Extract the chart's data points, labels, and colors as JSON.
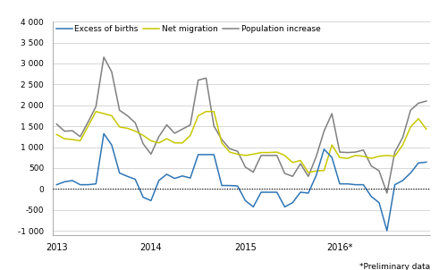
{
  "footnote": "*Preliminary data",
  "legend": [
    "Excess of births",
    "Net migration",
    "Population increase"
  ],
  "colors": {
    "excess_births": "#2e75b6",
    "net_migration": "#c8c800",
    "population_increase": "#808080"
  },
  "ylim": [
    -1100,
    4000
  ],
  "yticks": [
    -1000,
    -500,
    0,
    500,
    1000,
    1500,
    2000,
    2500,
    3000,
    3500,
    4000
  ],
  "ytick_labels": [
    "-1 000",
    "-500",
    "0",
    "500",
    "1 000",
    "1 500",
    "2 000",
    "2 500",
    "3 000",
    "3 500",
    "4 000"
  ],
  "xtick_positions": [
    0,
    12,
    24,
    36
  ],
  "xtick_labels": [
    "2013",
    "2014",
    "2015",
    "2016*"
  ],
  "excess_births": [
    100,
    170,
    200,
    100,
    100,
    120,
    1320,
    1050,
    380,
    300,
    230,
    -200,
    -280,
    200,
    350,
    250,
    310,
    260,
    820,
    820,
    820,
    80,
    80,
    70,
    -280,
    -430,
    -80,
    -80,
    -80,
    -430,
    -330,
    -80,
    -100,
    320,
    950,
    750,
    120,
    120,
    100,
    100,
    -180,
    -330,
    -1000,
    100,
    200,
    380,
    620,
    640
  ],
  "net_migration": [
    1300,
    1200,
    1180,
    1150,
    1500,
    1850,
    1800,
    1750,
    1480,
    1450,
    1380,
    1280,
    1150,
    1100,
    1200,
    1100,
    1100,
    1280,
    1750,
    1850,
    1850,
    1100,
    880,
    830,
    800,
    830,
    870,
    870,
    880,
    800,
    630,
    680,
    390,
    430,
    440,
    1050,
    750,
    730,
    800,
    780,
    730,
    780,
    800,
    780,
    1050,
    1480,
    1680,
    1430
  ],
  "population_increase": [
    1550,
    1380,
    1390,
    1250,
    1600,
    1970,
    3150,
    2800,
    1880,
    1750,
    1580,
    1080,
    830,
    1250,
    1530,
    1330,
    1430,
    1530,
    2600,
    2650,
    1500,
    1180,
    960,
    900,
    520,
    400,
    800,
    800,
    800,
    370,
    300,
    600,
    300,
    770,
    1380,
    1800,
    880,
    870,
    880,
    930,
    550,
    430,
    -100,
    880,
    1230,
    1880,
    2050,
    2100
  ]
}
